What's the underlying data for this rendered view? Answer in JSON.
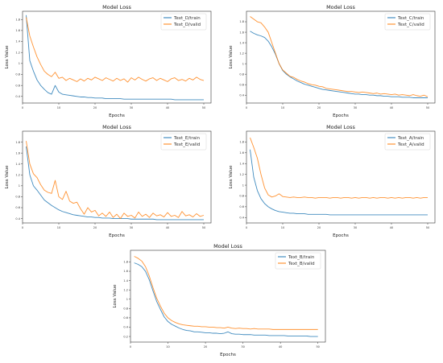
{
  "chart_data": [
    {
      "type": "line",
      "title": "Model Loss",
      "xlabel": "Epochs",
      "ylabel": "Loss Value",
      "xlim": [
        0,
        52
      ],
      "ylim": [
        0.28,
        1.95
      ],
      "grid": false,
      "legend": "top-right",
      "x_ticks": [
        0,
        10,
        20,
        30,
        40,
        50
      ],
      "y_ticks": [
        0.4,
        0.6,
        0.8,
        1.0,
        1.2,
        1.4,
        1.6,
        1.8
      ],
      "series": [
        {
          "name": "Text_D/train",
          "color": "#1f77b4",
          "values": [
            1.88,
            1.05,
            0.86,
            0.7,
            0.6,
            0.53,
            0.47,
            0.44,
            0.6,
            0.48,
            0.44,
            0.43,
            0.42,
            0.41,
            0.4,
            0.39,
            0.39,
            0.38,
            0.38,
            0.37,
            0.37,
            0.37,
            0.36,
            0.36,
            0.36,
            0.36,
            0.36,
            0.35,
            0.35,
            0.35,
            0.35,
            0.35,
            0.35,
            0.35,
            0.35,
            0.35,
            0.35,
            0.35,
            0.35,
            0.35,
            0.35,
            0.34,
            0.34,
            0.34,
            0.34,
            0.34,
            0.34,
            0.34,
            0.34,
            0.34
          ]
        },
        {
          "name": "Text_D/valid",
          "color": "#ff7f0e",
          "values": [
            1.84,
            1.5,
            1.3,
            1.12,
            0.98,
            0.86,
            0.8,
            0.76,
            0.84,
            0.73,
            0.75,
            0.69,
            0.73,
            0.7,
            0.67,
            0.72,
            0.68,
            0.73,
            0.7,
            0.75,
            0.72,
            0.69,
            0.74,
            0.71,
            0.68,
            0.73,
            0.69,
            0.72,
            0.66,
            0.74,
            0.7,
            0.75,
            0.71,
            0.68,
            0.72,
            0.74,
            0.69,
            0.73,
            0.7,
            0.67,
            0.72,
            0.74,
            0.69,
            0.71,
            0.68,
            0.73,
            0.7,
            0.75,
            0.71,
            0.69
          ]
        }
      ]
    },
    {
      "type": "line",
      "title": "Model Loss",
      "xlabel": "Epochs",
      "ylabel": "Loss Value",
      "xlim": [
        0,
        52
      ],
      "ylim": [
        0.25,
        2.0
      ],
      "grid": false,
      "legend": "top-right",
      "x_ticks": [
        0,
        10,
        20,
        30,
        40,
        50
      ],
      "y_ticks": [
        0.4,
        0.6,
        0.8,
        1.0,
        1.2,
        1.4,
        1.6,
        1.8
      ],
      "series": [
        {
          "name": "Text_C/train",
          "color": "#1f77b4",
          "values": [
            1.62,
            1.58,
            1.55,
            1.53,
            1.5,
            1.43,
            1.32,
            1.18,
            1.0,
            0.87,
            0.8,
            0.75,
            0.71,
            0.67,
            0.64,
            0.61,
            0.59,
            0.57,
            0.55,
            0.53,
            0.51,
            0.5,
            0.49,
            0.48,
            0.47,
            0.46,
            0.45,
            0.44,
            0.43,
            0.42,
            0.42,
            0.41,
            0.41,
            0.4,
            0.4,
            0.39,
            0.39,
            0.38,
            0.38,
            0.37,
            0.37,
            0.37,
            0.36,
            0.36,
            0.36,
            0.35,
            0.35,
            0.35,
            0.35,
            0.35
          ]
        },
        {
          "name": "Text_C/valid",
          "color": "#ff7f0e",
          "values": [
            1.9,
            1.85,
            1.8,
            1.78,
            1.7,
            1.6,
            1.4,
            1.2,
            1.0,
            0.88,
            0.82,
            0.76,
            0.74,
            0.7,
            0.67,
            0.65,
            0.62,
            0.6,
            0.59,
            0.57,
            0.56,
            0.53,
            0.52,
            0.51,
            0.5,
            0.49,
            0.48,
            0.47,
            0.47,
            0.46,
            0.45,
            0.46,
            0.45,
            0.44,
            0.43,
            0.44,
            0.42,
            0.43,
            0.42,
            0.41,
            0.42,
            0.4,
            0.41,
            0.4,
            0.39,
            0.41,
            0.39,
            0.38,
            0.4,
            0.37
          ]
        }
      ]
    },
    {
      "type": "line",
      "title": "Model Loss",
      "xlabel": "Epochs",
      "ylabel": "Loss Value",
      "xlim": [
        0,
        52
      ],
      "ylim": [
        0.32,
        2.0
      ],
      "grid": false,
      "legend": "top-right",
      "x_ticks": [
        0,
        10,
        20,
        30,
        40,
        50
      ],
      "y_ticks": [
        0.4,
        0.6,
        0.8,
        1.0,
        1.2,
        1.4,
        1.6,
        1.8
      ],
      "series": [
        {
          "name": "Text_E/train",
          "color": "#1f77b4",
          "values": [
            1.72,
            1.2,
            1.0,
            0.92,
            0.83,
            0.74,
            0.69,
            0.64,
            0.6,
            0.56,
            0.53,
            0.51,
            0.49,
            0.47,
            0.46,
            0.45,
            0.44,
            0.43,
            0.43,
            0.42,
            0.42,
            0.41,
            0.41,
            0.41,
            0.4,
            0.4,
            0.4,
            0.4,
            0.4,
            0.39,
            0.39,
            0.39,
            0.39,
            0.39,
            0.39,
            0.39,
            0.38,
            0.38,
            0.38,
            0.38,
            0.38,
            0.38,
            0.38,
            0.38,
            0.38,
            0.38,
            0.38,
            0.38,
            0.38,
            0.38
          ]
        },
        {
          "name": "Text_E/valid",
          "color": "#ff7f0e",
          "values": [
            1.82,
            1.4,
            1.22,
            1.15,
            1.02,
            0.92,
            0.88,
            0.86,
            1.1,
            0.8,
            0.75,
            0.9,
            0.72,
            0.68,
            0.7,
            0.58,
            0.48,
            0.6,
            0.52,
            0.55,
            0.45,
            0.5,
            0.44,
            0.52,
            0.42,
            0.48,
            0.4,
            0.5,
            0.44,
            0.46,
            0.41,
            0.52,
            0.44,
            0.48,
            0.42,
            0.5,
            0.45,
            0.47,
            0.43,
            0.51,
            0.44,
            0.46,
            0.42,
            0.53,
            0.45,
            0.47,
            0.43,
            0.49,
            0.44,
            0.46
          ]
        }
      ]
    },
    {
      "type": "line",
      "title": "Model Loss",
      "xlabel": "Epochs",
      "ylabel": "Loss Value",
      "xlim": [
        0,
        52
      ],
      "ylim": [
        0.3,
        2.0
      ],
      "grid": false,
      "legend": "top-right",
      "x_ticks": [
        0,
        10,
        20,
        30,
        40,
        50
      ],
      "y_ticks": [
        0.4,
        0.6,
        0.8,
        1.0,
        1.2,
        1.4,
        1.6,
        1.8
      ],
      "series": [
        {
          "name": "Text_A/train",
          "color": "#1f77b4",
          "values": [
            1.66,
            1.15,
            0.9,
            0.75,
            0.66,
            0.6,
            0.56,
            0.53,
            0.51,
            0.5,
            0.49,
            0.48,
            0.48,
            0.47,
            0.47,
            0.47,
            0.46,
            0.46,
            0.46,
            0.46,
            0.46,
            0.46,
            0.45,
            0.45,
            0.45,
            0.45,
            0.45,
            0.45,
            0.45,
            0.45,
            0.45,
            0.45,
            0.45,
            0.45,
            0.45,
            0.45,
            0.45,
            0.45,
            0.45,
            0.45,
            0.45,
            0.45,
            0.45,
            0.45,
            0.45,
            0.45,
            0.45,
            0.45,
            0.45,
            0.45
          ]
        },
        {
          "name": "Text_A/valid",
          "color": "#ff7f0e",
          "values": [
            1.88,
            1.7,
            1.5,
            1.2,
            0.95,
            0.82,
            0.78,
            0.8,
            0.84,
            0.79,
            0.78,
            0.77,
            0.78,
            0.77,
            0.77,
            0.78,
            0.77,
            0.77,
            0.76,
            0.77,
            0.77,
            0.77,
            0.76,
            0.77,
            0.77,
            0.76,
            0.77,
            0.77,
            0.76,
            0.77,
            0.76,
            0.77,
            0.77,
            0.76,
            0.77,
            0.76,
            0.77,
            0.77,
            0.76,
            0.77,
            0.76,
            0.77,
            0.76,
            0.77,
            0.77,
            0.76,
            0.77,
            0.76,
            0.77,
            0.77
          ]
        }
      ]
    },
    {
      "type": "line",
      "title": "Model Loss",
      "xlabel": "Epochs",
      "ylabel": "Loss Value",
      "xlim": [
        0,
        52
      ],
      "ylim": [
        0.08,
        2.05
      ],
      "grid": false,
      "legend": "top-right",
      "x_ticks": [
        0,
        10,
        20,
        30,
        40,
        50
      ],
      "y_ticks": [
        0.2,
        0.4,
        0.6,
        0.8,
        1.0,
        1.2,
        1.4,
        1.6,
        1.8
      ],
      "series": [
        {
          "name": "Text_B/train",
          "color": "#1f77b4",
          "values": [
            1.78,
            1.75,
            1.7,
            1.6,
            1.42,
            1.18,
            0.95,
            0.78,
            0.62,
            0.52,
            0.46,
            0.42,
            0.38,
            0.35,
            0.33,
            0.32,
            0.3,
            0.3,
            0.29,
            0.28,
            0.28,
            0.27,
            0.27,
            0.26,
            0.27,
            0.3,
            0.26,
            0.25,
            0.25,
            0.24,
            0.24,
            0.24,
            0.23,
            0.23,
            0.23,
            0.23,
            0.22,
            0.22,
            0.22,
            0.22,
            0.22,
            0.21,
            0.21,
            0.21,
            0.21,
            0.21,
            0.21,
            0.2,
            0.2,
            0.2
          ]
        },
        {
          "name": "Text_B/valid",
          "color": "#ff7f0e",
          "values": [
            1.92,
            1.88,
            1.82,
            1.7,
            1.5,
            1.25,
            1.02,
            0.85,
            0.7,
            0.6,
            0.54,
            0.5,
            0.47,
            0.45,
            0.44,
            0.43,
            0.42,
            0.42,
            0.41,
            0.41,
            0.4,
            0.4,
            0.39,
            0.39,
            0.38,
            0.4,
            0.38,
            0.37,
            0.38,
            0.37,
            0.37,
            0.36,
            0.37,
            0.36,
            0.36,
            0.36,
            0.36,
            0.35,
            0.35,
            0.35,
            0.35,
            0.35,
            0.35,
            0.35,
            0.35,
            0.35,
            0.35,
            0.35,
            0.35,
            0.35
          ]
        }
      ]
    }
  ]
}
